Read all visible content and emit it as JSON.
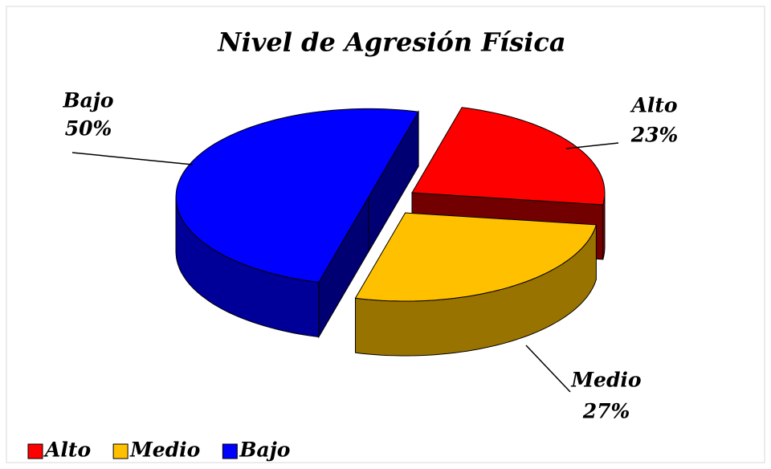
{
  "chart_data": {
    "type": "pie3d",
    "title": "Nivel de Agresión Física",
    "categories": [
      "Alto",
      "Medio",
      "Bajo"
    ],
    "values": [
      23,
      27,
      50
    ],
    "value_labels": [
      "23%",
      "27%",
      "50%"
    ],
    "colors": [
      "#ff0000",
      "#ffc000",
      "#0000ff"
    ],
    "legend": "bottom-left"
  }
}
